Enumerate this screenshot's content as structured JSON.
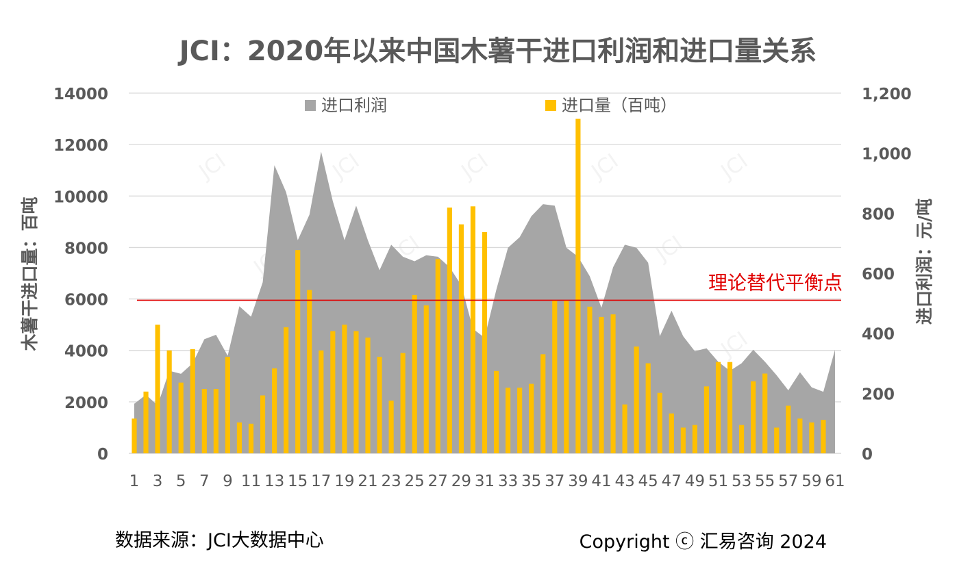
{
  "chart_data": {
    "type": "bar",
    "title": "JCI：2020年以来中国木薯干进口利润和进口量关系",
    "x": [
      1,
      2,
      3,
      4,
      5,
      6,
      7,
      8,
      9,
      10,
      11,
      12,
      13,
      14,
      15,
      16,
      17,
      18,
      19,
      20,
      21,
      22,
      23,
      24,
      25,
      26,
      27,
      28,
      29,
      30,
      31,
      32,
      33,
      34,
      35,
      36,
      37,
      38,
      39,
      40,
      41,
      42,
      43,
      44,
      45,
      46,
      47,
      48,
      49,
      50,
      51,
      52,
      53,
      54,
      55,
      56,
      57,
      58,
      59,
      60,
      61
    ],
    "x_tick_labels": [
      "1",
      "3",
      "5",
      "7",
      "9",
      "11",
      "13",
      "15",
      "17",
      "19",
      "21",
      "23",
      "25",
      "27",
      "29",
      "31",
      "33",
      "35",
      "37",
      "39",
      "41",
      "43",
      "45",
      "47",
      "49",
      "51",
      "53",
      "55",
      "57",
      "59",
      "61"
    ],
    "ylabel_left": "木薯干进口量：百吨",
    "ylabel_right": "进口利润：元/吨",
    "ylim_left": [
      0,
      14000
    ],
    "ylim_right": [
      0,
      1200
    ],
    "yticks_left": [
      "0",
      "2000",
      "4000",
      "6000",
      "8000",
      "10000",
      "12000",
      "14000"
    ],
    "yticks_right": [
      "0",
      "200",
      "400",
      "600",
      "800",
      "1,000",
      "1,200"
    ],
    "grid": true,
    "legend_position": "top",
    "series": [
      {
        "name": "进口利润",
        "type": "area",
        "axis": "right",
        "color": "#a6a6a6",
        "values": [
          165,
          195,
          160,
          275,
          265,
          300,
          380,
          395,
          325,
          490,
          455,
          570,
          960,
          870,
          710,
          795,
          1005,
          840,
          710,
          825,
          710,
          610,
          695,
          655,
          640,
          660,
          655,
          620,
          560,
          415,
          385,
          545,
          685,
          720,
          790,
          830,
          825,
          685,
          655,
          590,
          485,
          620,
          695,
          685,
          635,
          390,
          475,
          390,
          340,
          350,
          305,
          275,
          300,
          345,
          305,
          260,
          210,
          270,
          220,
          205,
          345
        ]
      },
      {
        "name": "进口量（百吨）",
        "type": "bar",
        "axis": "left",
        "color": "#ffc000",
        "values": [
          1350,
          2400,
          5000,
          4000,
          2750,
          4050,
          2500,
          2500,
          3750,
          1200,
          1150,
          2250,
          3300,
          4900,
          7900,
          6350,
          4000,
          4750,
          5000,
          4750,
          4500,
          3750,
          2050,
          3900,
          6150,
          5750,
          7550,
          9550,
          8900,
          9600,
          8600,
          3200,
          2550,
          2550,
          2700,
          3850,
          5950,
          5950,
          13000,
          5700,
          5300,
          5400,
          1900,
          4150,
          3500,
          2350,
          1550,
          1000,
          1100,
          2600,
          3550,
          3550,
          1100,
          2800,
          3100,
          1000,
          1850,
          1350,
          1200,
          1300,
          null
        ]
      }
    ],
    "reference_line": {
      "axis": "right",
      "value": 510,
      "label": "理论替代平衡点",
      "color": "#e00000"
    }
  },
  "watermark": {
    "text": "JCI"
  },
  "footer": {
    "source": "数据来源：JCI大数据中心",
    "copyright": "Copyright ⓒ 汇易咨询 2024"
  }
}
